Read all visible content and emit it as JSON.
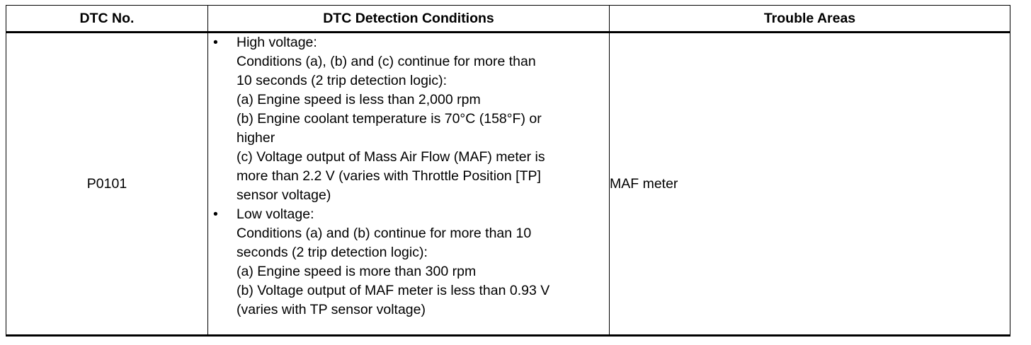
{
  "table": {
    "headers": {
      "dtc_no": "DTC No.",
      "conditions": "DTC Detection Conditions",
      "areas": "Trouble Areas"
    },
    "rows": [
      {
        "dtc_no": "P0101",
        "conditions": [
          {
            "bullet": "•",
            "lines": [
              "High voltage:",
              "Conditions (a), (b) and (c) continue for more than",
              "10 seconds (2 trip detection logic):",
              "(a) Engine speed is less than 2,000 rpm",
              "(b) Engine coolant temperature is 70°C (158°F) or",
              "higher",
              "(c) Voltage output of Mass Air Flow (MAF) meter is",
              "more than 2.2 V (varies with Throttle Position [TP]",
              "sensor voltage)"
            ]
          },
          {
            "bullet": "•",
            "lines": [
              "Low voltage:",
              "Conditions (a) and (b) continue for more than 10",
              "seconds (2 trip detection logic):",
              "(a) Engine speed is more than 300 rpm",
              "(b) Voltage output of MAF meter is less than 0.93 V",
              "(varies with TP sensor voltage)"
            ]
          }
        ],
        "trouble_areas": "MAF meter"
      }
    ]
  }
}
